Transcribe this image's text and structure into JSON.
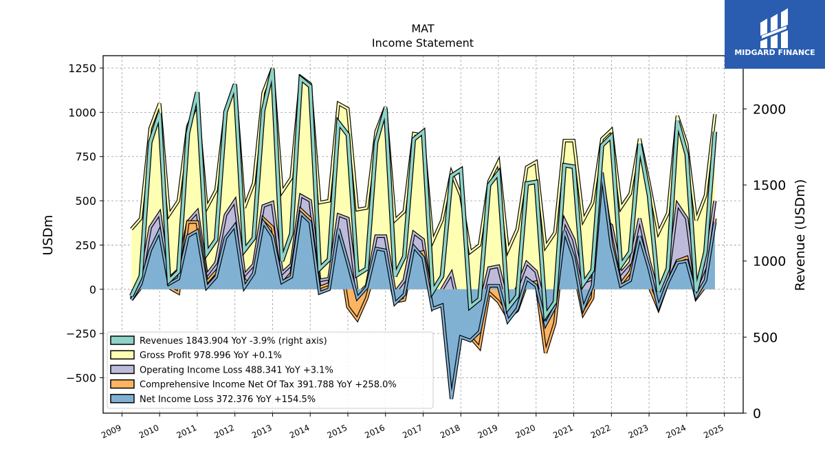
{
  "chart_data": {
    "type": "line",
    "title": "MAT",
    "subtitle": "Income Statement",
    "ylabel": "USDm",
    "ylabel_right": "Revenue (USDm)",
    "ylim": [
      -700,
      1320
    ],
    "ylim_right": [
      0,
      2350
    ],
    "xlim": [
      2008.5,
      2025.5
    ],
    "yticks": [
      "1250",
      "1000",
      "750",
      "500",
      "250",
      "0",
      "−250",
      "−500"
    ],
    "yticks_right": [
      "2000",
      "1500",
      "1000",
      "500",
      "0"
    ],
    "xticks": [
      "2009",
      "2010",
      "2011",
      "2012",
      "2013",
      "2014",
      "2015",
      "2016",
      "2017",
      "2018",
      "2019",
      "2020",
      "2021",
      "2022",
      "2023",
      "2024",
      "2025"
    ],
    "grid": true,
    "legend_position": "lower-left",
    "x": [
      2009.25,
      2009.5,
      2009.75,
      2010.0,
      2010.25,
      2010.5,
      2010.75,
      2011.0,
      2011.25,
      2011.5,
      2011.75,
      2012.0,
      2012.25,
      2012.5,
      2012.75,
      2013.0,
      2013.25,
      2013.5,
      2013.75,
      2014.0,
      2014.25,
      2014.5,
      2014.75,
      2015.0,
      2015.25,
      2015.5,
      2015.75,
      2016.0,
      2016.25,
      2016.5,
      2016.75,
      2017.0,
      2017.25,
      2017.5,
      2017.75,
      2018.0,
      2018.25,
      2018.5,
      2018.75,
      2019.0,
      2019.25,
      2019.5,
      2019.75,
      2020.0,
      2020.25,
      2020.5,
      2020.75,
      2021.0,
      2021.25,
      2021.5,
      2021.75,
      2022.0,
      2022.25,
      2022.5,
      2022.75,
      2023.0,
      2023.25,
      2023.5,
      2023.75,
      2024.0,
      2024.25,
      2024.5,
      2024.75
    ],
    "series": [
      {
        "name": "Revenues  1843.904 YoY -3.9% (right axis)",
        "axis": "right",
        "color": "#8dd3c7",
        "fill_under": false,
        "values": [
          770,
          900,
          1780,
          1970,
          870,
          930,
          1840,
          2110,
          1050,
          1140,
          1980,
          2160,
          1070,
          1150,
          1990,
          2260,
          1000,
          1180,
          2200,
          2150,
          950,
          1010,
          1910,
          1830,
          910,
          950,
          1780,
          2000,
          900,
          1030,
          1800,
          1850,
          800,
          900,
          1560,
          1600,
          700,
          750,
          1500,
          1580,
          690,
          770,
          1510,
          1520,
          640,
          730,
          1630,
          1620,
          850,
          940,
          1760,
          1820,
          970,
          1060,
          1770,
          1430,
          800,
          950,
          1920,
          1700,
          800,
          1060,
          1850
        ]
      },
      {
        "name": "Gross Profit  978.996 YoY +0.1%",
        "axis": "left",
        "color": "#ffffb3",
        "fill_under": true,
        "values": [
          340,
          400,
          910,
          1050,
          420,
          500,
          920,
          1050,
          460,
          560,
          1010,
          1160,
          460,
          600,
          1110,
          1250,
          550,
          630,
          1200,
          1160,
          490,
          500,
          1050,
          1020,
          450,
          460,
          890,
          1030,
          390,
          440,
          880,
          870,
          270,
          390,
          660,
          530,
          210,
          250,
          610,
          720,
          220,
          340,
          690,
          720,
          240,
          320,
          840,
          840,
          390,
          490,
          850,
          900,
          460,
          540,
          850,
          600,
          320,
          430,
          980,
          820,
          390,
          530,
          990
        ]
      },
      {
        "name": "Operating Income Loss  488.341 YoY +3.1%",
        "axis": "left",
        "color": "#bebada",
        "fill_under": true,
        "values": [
          -50,
          50,
          350,
          430,
          60,
          110,
          380,
          440,
          80,
          150,
          420,
          500,
          80,
          140,
          470,
          490,
          90,
          140,
          530,
          500,
          50,
          60,
          420,
          400,
          -30,
          20,
          300,
          300,
          -20,
          50,
          320,
          280,
          -100,
          0,
          90,
          -150,
          -200,
          -100,
          120,
          130,
          -90,
          10,
          150,
          100,
          -110,
          -20,
          390,
          280,
          40,
          60,
          400,
          360,
          90,
          150,
          400,
          160,
          -40,
          70,
          480,
          400,
          0,
          130,
          500
        ]
      },
      {
        "name": "Comprehensive Income Net Of Tax  391.788 YoY +258.0%",
        "axis": "left",
        "color": "#fdb462",
        "fill_under": true,
        "values": [
          -60,
          10,
          220,
          270,
          10,
          -20,
          380,
          380,
          40,
          100,
          170,
          270,
          50,
          20,
          400,
          350,
          30,
          90,
          450,
          400,
          10,
          30,
          240,
          -100,
          -170,
          -50,
          140,
          160,
          -70,
          -60,
          200,
          210,
          -60,
          -70,
          -320,
          -190,
          -270,
          -330,
          -20,
          -70,
          -160,
          -120,
          30,
          40,
          -360,
          -190,
          300,
          120,
          -140,
          -50,
          640,
          290,
          30,
          100,
          280,
          20,
          -110,
          40,
          160,
          180,
          -50,
          20,
          400
        ]
      },
      {
        "name": "Net Income Loss  372.376 YoY +154.5%",
        "axis": "left",
        "color": "#80b1d3",
        "fill_under": true,
        "values": [
          -60,
          30,
          220,
          330,
          30,
          60,
          300,
          330,
          10,
          70,
          290,
          360,
          10,
          90,
          380,
          300,
          40,
          70,
          430,
          380,
          -20,
          0,
          340,
          150,
          -50,
          10,
          230,
          220,
          -80,
          -30,
          240,
          180,
          -110,
          -90,
          -620,
          -270,
          -290,
          -240,
          20,
          20,
          -180,
          -110,
          60,
          20,
          -200,
          -100,
          330,
          180,
          -110,
          20,
          660,
          250,
          20,
          50,
          300,
          120,
          -100,
          40,
          150,
          160,
          -40,
          50,
          380
        ]
      }
    ]
  },
  "logo": {
    "text": "MIDGARD FINANCE",
    "color": "#2a5db0"
  }
}
